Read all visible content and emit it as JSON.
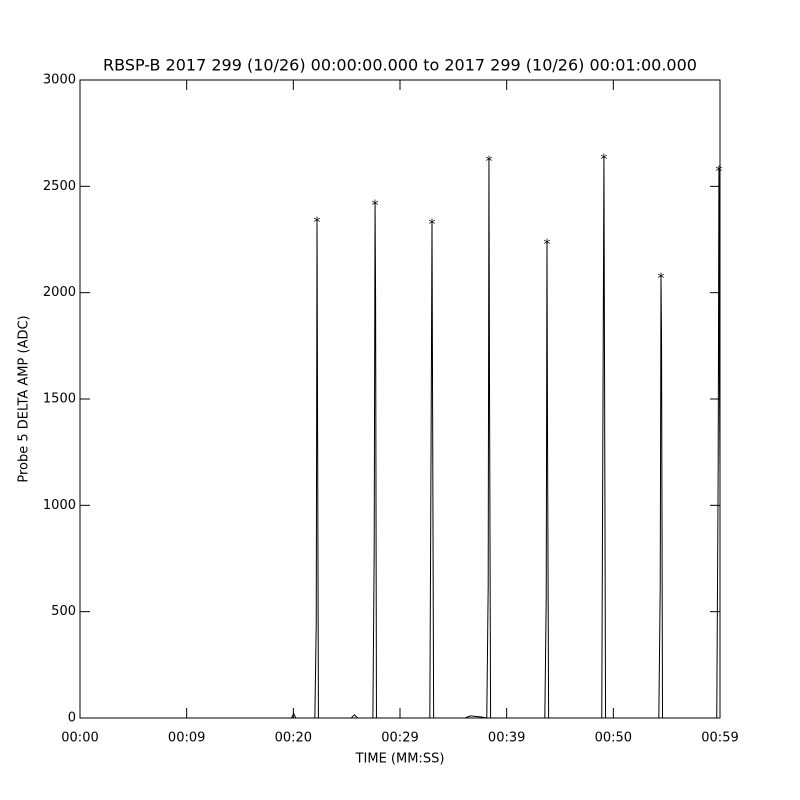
{
  "chart_data": {
    "type": "line",
    "title": "RBSP-B 2017 299 (10/26) 00:00:00.000 to 2017 299 (10/26) 00:01:00.000",
    "xlabel": "TIME (MM:SS)",
    "ylabel": "Probe 5 DELTA AMP (ADC)",
    "xlim": [
      0,
      59
    ],
    "ylim": [
      0,
      3000
    ],
    "xticks": [
      {
        "value": 0,
        "label": "00:00"
      },
      {
        "value": 9.833,
        "label": "00:09"
      },
      {
        "value": 19.667,
        "label": "00:20"
      },
      {
        "value": 29.5,
        "label": "00:29"
      },
      {
        "value": 39.333,
        "label": "00:39"
      },
      {
        "value": 49.167,
        "label": "00:50"
      },
      {
        "value": 59,
        "label": "00:59"
      }
    ],
    "yticks": [
      0,
      500,
      1000,
      1500,
      2000,
      2500,
      3000
    ],
    "line": {
      "color": "#000000",
      "x": [
        0,
        19.5,
        19.7,
        19.9,
        21.65,
        21.78,
        21.85,
        21.9,
        21.98,
        25,
        25.3,
        25.6,
        27.0,
        27.12,
        27.2,
        27.25,
        27.33,
        32.25,
        32.38,
        32.45,
        32.5,
        32.6,
        35.5,
        36,
        37.0,
        37.5,
        37.63,
        37.7,
        37.75,
        37.85,
        42.85,
        42.98,
        43.05,
        43.1,
        43.2,
        48.1,
        48.23,
        48.3,
        48.35,
        48.45,
        53.36,
        53.49,
        53.56,
        53.61,
        53.7,
        58.7,
        58.83,
        58.9,
        58.95,
        59
      ],
      "y": [
        0,
        0,
        20,
        0,
        0,
        450,
        2342,
        1430,
        0,
        0,
        15,
        0,
        0,
        780,
        2422,
        1970,
        0,
        0,
        1470,
        2332,
        1560,
        0,
        0,
        10,
        5,
        0,
        620,
        2628,
        1590,
        0,
        0,
        560,
        2238,
        1320,
        0,
        0,
        1720,
        2638,
        1740,
        0,
        0,
        620,
        2078,
        1790,
        0,
        0,
        1150,
        2582,
        1590,
        1150
      ]
    },
    "peaks": {
      "color": "#ff0000",
      "marker": "*",
      "x": [
        21.85,
        27.2,
        32.45,
        37.7,
        43.05,
        48.3,
        53.56,
        58.9
      ],
      "y": [
        2342,
        2422,
        2332,
        2628,
        2238,
        2638,
        2078,
        2582
      ]
    }
  }
}
